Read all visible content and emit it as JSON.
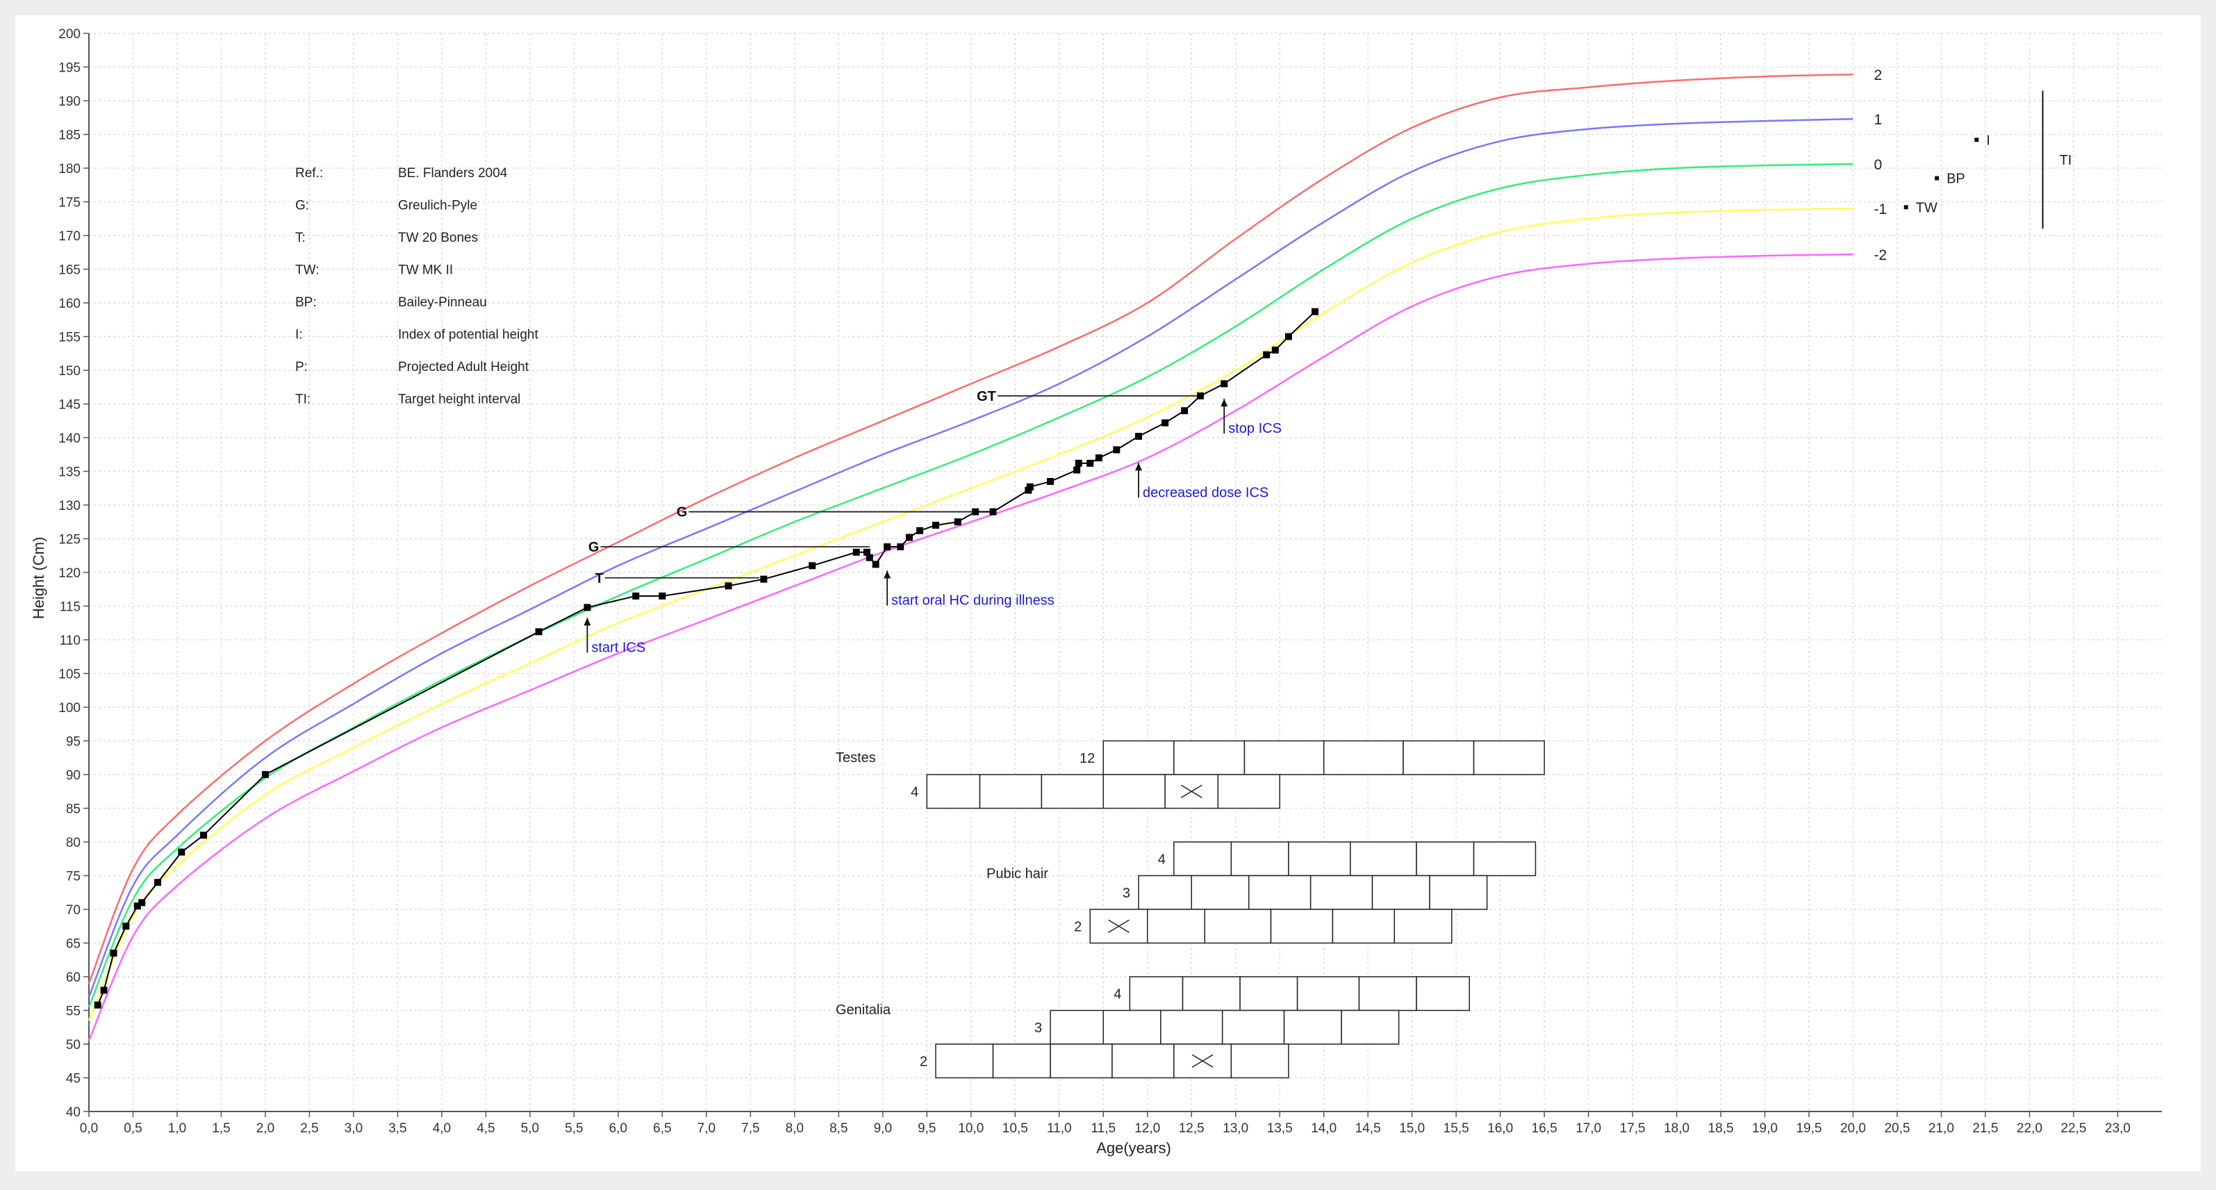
{
  "chart_data": {
    "type": "line",
    "title": "",
    "xlabel": "Age(years)",
    "ylabel": "Height (Cm)",
    "xlim": [
      0,
      23.5
    ],
    "ylim": [
      40,
      200
    ],
    "grid": true,
    "x_ticks": [
      "0,0",
      "0,5",
      "1,0",
      "1,5",
      "2,0",
      "2,5",
      "3,0",
      "3,5",
      "4,0",
      "4,5",
      "5,0",
      "5,5",
      "6,0",
      "6,5",
      "7,0",
      "7,5",
      "8,0",
      "8,5",
      "9,0",
      "9,5",
      "10,0",
      "10,5",
      "11,0",
      "11,5",
      "12,0",
      "12,5",
      "13,0",
      "13,5",
      "14,0",
      "14,5",
      "15,0",
      "15,5",
      "16,0",
      "16,5",
      "17,0",
      "17,5",
      "18,0",
      "18,5",
      "19,0",
      "19,5",
      "20,0",
      "20,5",
      "21,0",
      "21,5",
      "22,0",
      "22,5",
      "23,0"
    ],
    "y_ticks": [
      "40",
      "45",
      "50",
      "55",
      "60",
      "65",
      "70",
      "75",
      "80",
      "85",
      "90",
      "95",
      "100",
      "105",
      "110",
      "115",
      "120",
      "125",
      "130",
      "135",
      "140",
      "145",
      "150",
      "155",
      "160",
      "165",
      "170",
      "175",
      "180",
      "185",
      "190",
      "195",
      "200"
    ],
    "reference_curves": [
      {
        "name": "2",
        "color": "#ff6b6b",
        "x": [
          0,
          0.5,
          1,
          2,
          3,
          4,
          5,
          6,
          7,
          8,
          9,
          10,
          11,
          12,
          13,
          14,
          15,
          16,
          17,
          18,
          19,
          20
        ],
        "y": [
          59,
          76,
          84,
          95,
          103.5,
          111,
          118,
          124.5,
          131,
          137,
          142.5,
          148,
          153.5,
          160,
          169.5,
          178.5,
          186,
          190.5,
          192,
          193,
          193.6,
          193.9
        ]
      },
      {
        "name": "1",
        "color": "#7878ff",
        "x": [
          0,
          0.5,
          1,
          2,
          3,
          4,
          5,
          6,
          7,
          8,
          9,
          10,
          11,
          12,
          13,
          14,
          15,
          16,
          17,
          18,
          19,
          20
        ],
        "y": [
          57,
          73.5,
          81,
          92.5,
          100.5,
          108,
          114.5,
          121,
          126.5,
          132,
          137.5,
          142.5,
          148,
          155,
          163.5,
          172,
          179.5,
          184,
          185.8,
          186.6,
          187,
          187.3
        ]
      },
      {
        "name": "0",
        "color": "#33ee77",
        "x": [
          0,
          0.5,
          1,
          2,
          3,
          4,
          5,
          6,
          7,
          8,
          9,
          10,
          11,
          12,
          13,
          14,
          15,
          16,
          17,
          18,
          19,
          20
        ],
        "y": [
          55.5,
          71.5,
          79,
          89.5,
          97,
          104,
          110.5,
          116.5,
          122,
          127.5,
          132.5,
          137.5,
          143,
          149,
          156.5,
          165,
          172.5,
          177,
          179,
          180,
          180.4,
          180.6
        ]
      },
      {
        "name": "-1",
        "color": "#ffff55",
        "x": [
          0,
          0.5,
          1,
          2,
          3,
          4,
          5,
          6,
          7,
          8,
          9,
          10,
          11,
          12,
          13,
          14,
          15,
          16,
          17,
          18,
          19,
          20
        ],
        "y": [
          53.5,
          69,
          76.5,
          87,
          94,
          100.5,
          106.5,
          112.5,
          117.5,
          122.5,
          127.5,
          132.5,
          137.5,
          143,
          150,
          158.5,
          166,
          170.5,
          172.5,
          173.4,
          173.8,
          174
        ]
      },
      {
        "name": "-2",
        "color": "#ff66ff",
        "x": [
          0,
          0.5,
          1,
          2,
          3,
          4,
          5,
          6,
          7,
          8,
          9,
          10,
          11,
          12,
          13,
          14,
          15,
          16,
          17,
          18,
          19,
          20
        ],
        "y": [
          50.5,
          66,
          73.5,
          83.5,
          90.5,
          97,
          102.5,
          108,
          113,
          118,
          123,
          127.5,
          132,
          137,
          144,
          152,
          159.5,
          164,
          165.8,
          166.6,
          167,
          167.2
        ]
      }
    ],
    "patient_series": {
      "name": "patient",
      "color": "#000000",
      "x": [
        0.1,
        0.17,
        0.28,
        0.42,
        0.55,
        0.6,
        0.78,
        1.05,
        1.3,
        2.0,
        5.1,
        5.65,
        6.2,
        6.5,
        7.25,
        7.65,
        8.2,
        8.7,
        8.82,
        8.85,
        8.92,
        9.05,
        9.2,
        9.3,
        9.42,
        9.6,
        9.85,
        10.05,
        10.25,
        10.65,
        10.67,
        10.9,
        11.2,
        11.22,
        11.35,
        11.45,
        11.65,
        11.9,
        12.2,
        12.42,
        12.6,
        12.87,
        13.35,
        13.45,
        13.6,
        13.9
      ],
      "y": [
        55.8,
        58,
        63.5,
        67.5,
        70.5,
        71,
        74,
        78.5,
        81,
        90,
        111.2,
        114.8,
        116.5,
        116.5,
        118,
        119,
        121,
        123,
        123,
        122.2,
        121.2,
        123.8,
        123.8,
        125.2,
        126.2,
        127,
        127.5,
        129,
        129,
        132.2,
        132.7,
        133.5,
        135.2,
        136.2,
        136.2,
        137,
        138.2,
        140.2,
        142.2,
        144,
        146.2,
        148,
        152.3,
        153,
        155,
        158.7
      ]
    },
    "bone_age_markers": [
      {
        "label": "G",
        "bone_age": 6.8,
        "chrono_age": 10.25,
        "y": 129
      },
      {
        "label": "G",
        "bone_age": 5.8,
        "chrono_age": 8.85,
        "y": 123.8
      },
      {
        "label": "T",
        "bone_age": 5.85,
        "chrono_age": 7.6,
        "y": 119.2
      },
      {
        "label": "GT",
        "bone_age": 10.3,
        "chrono_age": 12.6,
        "y": 146.2
      }
    ],
    "annotations": [
      {
        "text": "start ICS",
        "x": 5.65,
        "y": 114.5
      },
      {
        "text": "start oral HC during illness",
        "x": 9.05,
        "y": 121.5
      },
      {
        "text": "decreased dose ICS",
        "x": 11.9,
        "y": 137.5
      },
      {
        "text": "stop ICS",
        "x": 12.87,
        "y": 147
      }
    ],
    "predictions": [
      {
        "label": "I",
        "x": 21.4,
        "y": 184.2
      },
      {
        "label": "BP",
        "x": 20.95,
        "y": 178.5
      },
      {
        "label": "TW",
        "x": 20.6,
        "y": 174.2
      }
    ],
    "target_interval": {
      "label": "TI",
      "x": 22.15,
      "y_min": 171,
      "y_max": 191.5
    },
    "legend_entries": [
      {
        "key": "Ref.:",
        "value": "BE. Flanders 2004"
      },
      {
        "key": "G:",
        "value": "Greulich-Pyle"
      },
      {
        "key": "T:",
        "value": "TW 20 Bones"
      },
      {
        "key": "TW:",
        "value": "TW MK II"
      },
      {
        "key": "BP:",
        "value": "Bailey-Pinneau"
      },
      {
        "key": "I:",
        "value": "Index of potential height"
      },
      {
        "key": "P:",
        "value": "Projected Adult Height"
      },
      {
        "key": "TI:",
        "value": "Target height interval"
      }
    ],
    "tanner_stages": [
      {
        "title": "Testes",
        "rows": [
          {
            "label": "12",
            "y": 92.5,
            "boxes": [
              [
                11.5,
                12.3
              ],
              [
                12.3,
                13.1
              ],
              [
                13.1,
                14.0
              ],
              [
                14.0,
                14.9
              ],
              [
                14.9,
                15.7
              ],
              [
                15.7,
                16.5
              ]
            ],
            "cross": null
          },
          {
            "label": "4",
            "y": 87.5,
            "boxes": [
              [
                9.5,
                10.1
              ],
              [
                10.1,
                10.8
              ],
              [
                10.8,
                11.5
              ],
              [
                11.5,
                12.2
              ],
              [
                12.2,
                12.8
              ],
              [
                12.8,
                13.5
              ]
            ],
            "cross": 4
          }
        ]
      },
      {
        "title": "Pubic hair",
        "rows": [
          {
            "label": "4",
            "y": 77.5,
            "boxes": [
              [
                12.3,
                12.95
              ],
              [
                12.95,
                13.6
              ],
              [
                13.6,
                14.3
              ],
              [
                14.3,
                15.05
              ],
              [
                15.05,
                15.7
              ],
              [
                15.7,
                16.4
              ]
            ],
            "cross": null
          },
          {
            "label": "3",
            "y": 72.5,
            "boxes": [
              [
                11.9,
                12.5
              ],
              [
                12.5,
                13.15
              ],
              [
                13.15,
                13.85
              ],
              [
                13.85,
                14.55
              ],
              [
                14.55,
                15.2
              ],
              [
                15.2,
                15.85
              ]
            ],
            "cross": null
          },
          {
            "label": "2",
            "y": 67.5,
            "boxes": [
              [
                11.35,
                12.0
              ],
              [
                12.0,
                12.65
              ],
              [
                12.65,
                13.4
              ],
              [
                13.4,
                14.1
              ],
              [
                14.1,
                14.8
              ],
              [
                14.8,
                15.45
              ]
            ],
            "cross": 0
          }
        ]
      },
      {
        "title": "Genitalia",
        "rows": [
          {
            "label": "4",
            "y": 57.5,
            "boxes": [
              [
                11.8,
                12.4
              ],
              [
                12.4,
                13.05
              ],
              [
                13.05,
                13.7
              ],
              [
                13.7,
                14.4
              ],
              [
                14.4,
                15.05
              ],
              [
                15.05,
                15.65
              ]
            ],
            "cross": null
          },
          {
            "label": "3",
            "y": 52.5,
            "boxes": [
              [
                10.9,
                11.5
              ],
              [
                11.5,
                12.15
              ],
              [
                12.15,
                12.85
              ],
              [
                12.85,
                13.55
              ],
              [
                13.55,
                14.2
              ],
              [
                14.2,
                14.85
              ]
            ],
            "cross": null
          },
          {
            "label": "2",
            "y": 47.5,
            "boxes": [
              [
                9.6,
                10.25
              ],
              [
                10.25,
                10.9
              ],
              [
                10.9,
                11.6
              ],
              [
                11.6,
                12.3
              ],
              [
                12.3,
                12.95
              ],
              [
                12.95,
                13.6
              ]
            ],
            "cross": 4
          }
        ]
      }
    ]
  }
}
